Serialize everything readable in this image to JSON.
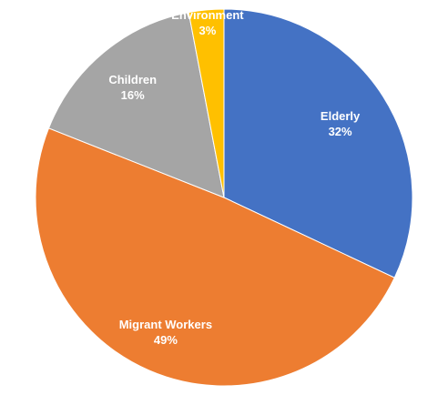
{
  "chart_data": {
    "type": "pie",
    "start_angle_deg": 0,
    "direction": "clockwise",
    "slices": [
      {
        "name": "Elderly",
        "value": 32,
        "label": "32%",
        "color": "#4472C4"
      },
      {
        "name": "Migrant Workers",
        "value": 49,
        "label": "49%",
        "color": "#ED7D31"
      },
      {
        "name": "Children",
        "value": 16,
        "label": "16%",
        "color": "#A5A5A5"
      },
      {
        "name": "Environment",
        "value": 3,
        "label": "3%",
        "color": "#FFC000"
      }
    ],
    "title": "",
    "legend": "none",
    "data_labels": "category-and-percent"
  }
}
